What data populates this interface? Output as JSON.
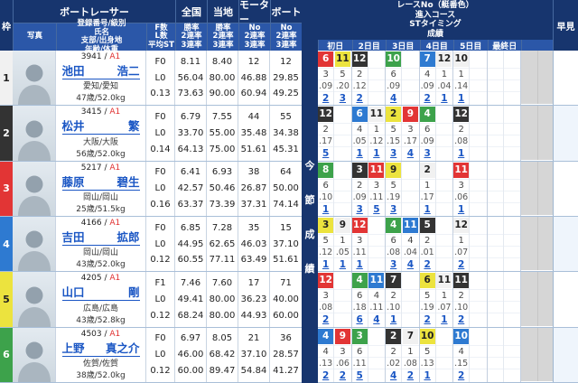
{
  "header": {
    "waku": "枠",
    "boat_racer": "ボートレーサー",
    "photo": "写真",
    "racer_info_lines": [
      "登録番号/級別",
      "氏名",
      "支部/出身地",
      "年齢/体重"
    ],
    "fl_lines": [
      "F数",
      "L数",
      "平均ST"
    ],
    "stat_groups": [
      {
        "label": "全国",
        "lines": [
          "勝率",
          "2連率",
          "3連率"
        ]
      },
      {
        "label": "当地",
        "lines": [
          "勝率",
          "2連率",
          "3連率"
        ]
      },
      {
        "label": "モーター",
        "lines": [
          "No",
          "2連率",
          "3連率"
        ]
      },
      {
        "label": "ボート",
        "lines": [
          "No",
          "2連率",
          "3連率"
        ]
      }
    ],
    "right_title_lines": [
      "レースNo（艇番色）",
      "進入コース",
      "STタイミング",
      "成績"
    ],
    "days": [
      "初日",
      "2日目",
      "3日目",
      "4日目",
      "5日目",
      "最終日"
    ],
    "hayami": "早見",
    "side_label": "今節成績"
  },
  "colors": {
    "header_dark": "#17356e",
    "header_mid": "#2b57a8",
    "link": "#1a56c4",
    "class_red": "#e03030",
    "boat": {
      "1": {
        "bg": "#f1f1f1",
        "fg": "#222222"
      },
      "2": {
        "bg": "#333333",
        "fg": "#ffffff"
      },
      "3": {
        "bg": "#e23535",
        "fg": "#ffffff"
      },
      "4": {
        "bg": "#2e7ad1",
        "fg": "#ffffff"
      },
      "5": {
        "bg": "#ece33e",
        "fg": "#222222"
      },
      "6": {
        "bg": "#3da24b",
        "fg": "#ffffff"
      }
    }
  },
  "racers": [
    {
      "lane": 1,
      "reg_no": "3941",
      "class": "A1",
      "name": "池田 浩二",
      "branch": "愛知/愛知",
      "age_weight": "47歳/52.0kg",
      "f_count": "F0",
      "l_count": "L0",
      "avg_st": "0.13",
      "national": [
        "8.11",
        "56.04",
        "73.63"
      ],
      "local": [
        "8.40",
        "80.00",
        "90.00"
      ],
      "motor": [
        "12",
        "46.88",
        "60.94"
      ],
      "boat": [
        "12",
        "29.85",
        "49.25"
      ],
      "days": [
        [
          {
            "race": "6",
            "boat": "3",
            "course": "3",
            "st": ".09",
            "fin": "2"
          },
          {
            "race": "11",
            "boat": "5",
            "course": "5",
            "st": ".20",
            "fin": "3"
          }
        ],
        [
          {
            "race": "12",
            "boat": "2",
            "course": "2",
            "st": ".12",
            "fin": "2"
          }
        ],
        [
          {
            "race": "10",
            "boat": "6",
            "course": "6",
            "st": ".09",
            "fin": "4"
          }
        ],
        [
          {
            "race": "7",
            "boat": "4",
            "course": "4",
            "st": ".09",
            "fin": "2"
          },
          {
            "race": "12",
            "boat": "1",
            "course": "1",
            "st": ".04",
            "fin": "1"
          }
        ],
        [
          {
            "race": "10",
            "boat": "1",
            "course": "1",
            "st": ".14",
            "fin": "1"
          }
        ],
        []
      ]
    },
    {
      "lane": 2,
      "reg_no": "3415",
      "class": "A1",
      "name": "松井 繁",
      "branch": "大阪/大阪",
      "age_weight": "56歳/52.0kg",
      "f_count": "F0",
      "l_count": "L0",
      "avg_st": "0.14",
      "national": [
        "6.79",
        "33.70",
        "64.13"
      ],
      "local": [
        "7.55",
        "55.00",
        "75.00"
      ],
      "motor": [
        "44",
        "35.48",
        "51.61"
      ],
      "boat": [
        "55",
        "34.38",
        "45.31"
      ],
      "days": [
        [
          {
            "race": "12",
            "boat": "2",
            "course": "2",
            "st": ".17",
            "fin": "5"
          }
        ],
        [
          {
            "race": "6",
            "boat": "4",
            "course": "4",
            "st": ".05",
            "fin": "1"
          },
          {
            "race": "11",
            "boat": "1",
            "course": "1",
            "st": ".12",
            "fin": "1"
          }
        ],
        [
          {
            "race": "2",
            "boat": "5",
            "course": "5",
            "st": ".15",
            "fin": "3"
          },
          {
            "race": "9",
            "boat": "3",
            "course": "3",
            "st": ".17",
            "fin": "4"
          }
        ],
        [
          {
            "race": "4",
            "boat": "6",
            "course": "6",
            "st": ".09",
            "fin": "3"
          }
        ],
        [
          {
            "race": "12",
            "boat": "2",
            "course": "2",
            "st": ".08",
            "fin": "1"
          }
        ],
        []
      ]
    },
    {
      "lane": 3,
      "reg_no": "5217",
      "class": "A1",
      "name": "藤原 碧生",
      "branch": "岡山/岡山",
      "age_weight": "25歳/51.5kg",
      "f_count": "F0",
      "l_count": "L0",
      "avg_st": "0.16",
      "national": [
        "6.41",
        "42.57",
        "63.37"
      ],
      "local": [
        "6.93",
        "50.46",
        "73.39"
      ],
      "motor": [
        "38",
        "26.87",
        "37.31"
      ],
      "boat": [
        "64",
        "50.00",
        "74.14"
      ],
      "days": [
        [
          {
            "race": "8",
            "boat": "6",
            "course": "6",
            "st": ".10",
            "fin": "1"
          }
        ],
        [
          {
            "race": "3",
            "boat": "2",
            "course": "2",
            "st": ".09",
            "fin": "3"
          },
          {
            "race": "11",
            "boat": "3",
            "course": "3",
            "st": ".11",
            "fin": "5"
          }
        ],
        [
          {
            "race": "9",
            "boat": "5",
            "course": "5",
            "st": ".19",
            "fin": "3"
          }
        ],
        [
          {
            "race": "2",
            "boat": "1",
            "course": "1",
            "st": ".17",
            "fin": "1"
          }
        ],
        [
          {
            "race": "11",
            "boat": "3",
            "course": "3",
            "st": ".06",
            "fin": "1"
          }
        ],
        []
      ]
    },
    {
      "lane": 4,
      "reg_no": "4166",
      "class": "A1",
      "name": "吉田 拡郎",
      "branch": "岡山/岡山",
      "age_weight": "43歳/52.0kg",
      "f_count": "F0",
      "l_count": "L0",
      "avg_st": "0.12",
      "national": [
        "6.85",
        "44.95",
        "60.55"
      ],
      "local": [
        "7.28",
        "62.65",
        "77.11"
      ],
      "motor": [
        "35",
        "46.03",
        "63.49"
      ],
      "boat": [
        "15",
        "37.10",
        "51.61"
      ],
      "days": [
        [
          {
            "race": "3",
            "boat": "5",
            "course": "5",
            "st": ".12",
            "fin": "1"
          },
          {
            "race": "9",
            "boat": "1",
            "course": "1",
            "st": ".05",
            "fin": "1"
          }
        ],
        [
          {
            "race": "12",
            "boat": "3",
            "course": "3",
            "st": ".11",
            "fin": "1"
          }
        ],
        [
          {
            "race": "4",
            "boat": "6",
            "course": "6",
            "st": ".08",
            "fin": "3"
          },
          {
            "race": "11",
            "boat": "4",
            "course": "4",
            "st": ".04",
            "fin": "4"
          }
        ],
        [
          {
            "race": "5",
            "boat": "2",
            "course": "2",
            "st": ".01",
            "fin": "2"
          }
        ],
        [
          {
            "race": "12",
            "boat": "1",
            "course": "1",
            "st": ".07",
            "fin": "2"
          }
        ],
        []
      ]
    },
    {
      "lane": 5,
      "reg_no": "4205",
      "class": "A1",
      "name": "山口 剛",
      "branch": "広島/広島",
      "age_weight": "43歳/52.8kg",
      "f_count": "F1",
      "l_count": "L0",
      "avg_st": "0.12",
      "national": [
        "7.46",
        "49.41",
        "68.24"
      ],
      "local": [
        "7.60",
        "80.00",
        "80.00"
      ],
      "motor": [
        "17",
        "36.23",
        "44.93"
      ],
      "boat": [
        "71",
        "40.00",
        "60.00"
      ],
      "days": [
        [
          {
            "race": "12",
            "boat": "3",
            "course": "3",
            "st": ".08",
            "fin": "2"
          }
        ],
        [
          {
            "race": "4",
            "boat": "6",
            "course": "6",
            "st": ".18",
            "fin": "6"
          },
          {
            "race": "11",
            "boat": "4",
            "course": "4",
            "st": ".11",
            "fin": "4"
          }
        ],
        [
          {
            "race": "7",
            "boat": "2",
            "course": "2",
            "st": ".10",
            "fin": "1"
          }
        ],
        [
          {
            "race": "6",
            "boat": "5",
            "course": "5",
            "st": ".19",
            "fin": "2"
          },
          {
            "race": "11",
            "boat": "1",
            "course": "1",
            "st": ".07",
            "fin": "1"
          }
        ],
        [
          {
            "race": "11",
            "boat": "2",
            "course": "2",
            "st": ".10",
            "fin": "2"
          }
        ],
        []
      ]
    },
    {
      "lane": 6,
      "reg_no": "4503",
      "class": "A1",
      "name": "上野 真之介",
      "branch": "佐賀/佐賀",
      "age_weight": "38歳/52.0kg",
      "f_count": "F0",
      "l_count": "L0",
      "avg_st": "0.12",
      "national": [
        "6.97",
        "46.00",
        "60.00"
      ],
      "local": [
        "8.05",
        "68.42",
        "89.47"
      ],
      "motor": [
        "21",
        "37.10",
        "54.84"
      ],
      "boat": [
        "36",
        "28.57",
        "41.27"
      ],
      "days": [
        [
          {
            "race": "4",
            "boat": "4",
            "course": "4",
            "st": ".13",
            "fin": "2"
          },
          {
            "race": "9",
            "boat": "3",
            "course": "3",
            "st": ".06",
            "fin": "2"
          }
        ],
        [
          {
            "race": "3",
            "boat": "6",
            "course": "6",
            "st": ".11",
            "fin": "5"
          }
        ],
        [
          {
            "race": "2",
            "boat": "2",
            "course": "2",
            "st": ".02",
            "fin": "4"
          },
          {
            "race": "7",
            "boat": "1",
            "course": "1",
            "st": ".08",
            "fin": "2"
          }
        ],
        [
          {
            "race": "10",
            "boat": "5",
            "course": "5",
            "st": ".13",
            "fin": "1"
          }
        ],
        [
          {
            "race": "10",
            "boat": "4",
            "course": "4",
            "st": ".15",
            "fin": "2"
          }
        ],
        []
      ]
    }
  ]
}
